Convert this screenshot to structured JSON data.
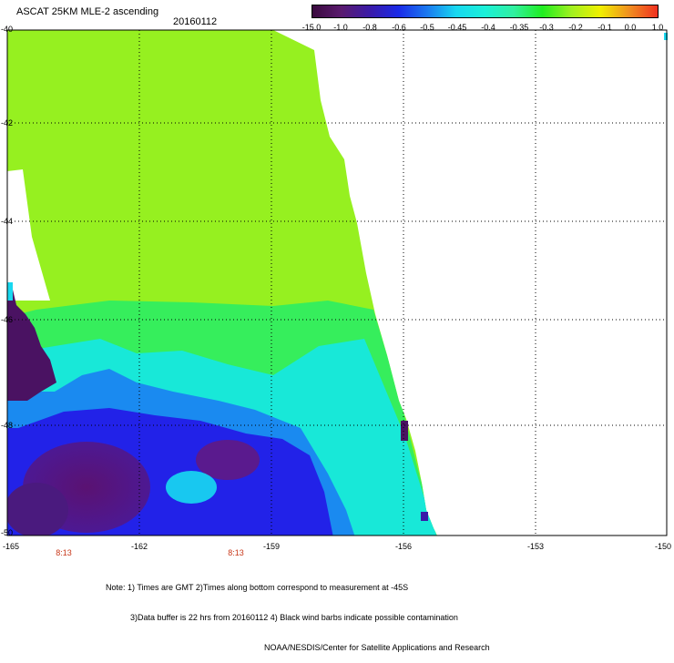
{
  "title": "ASCAT 25KM MLE-2 ascending",
  "date": "20160112",
  "colorbar": {
    "labels": [
      "-15.0",
      "-1.0",
      "-0.8",
      "-0.6",
      "-0.5",
      "-0.45",
      "-0.4",
      "-0.35",
      "-0.3",
      "-0.2",
      "-0.1",
      "0.0",
      "1.0"
    ],
    "colors": [
      "#3a0a3e",
      "#5a1a6e",
      "#3a1aa8",
      "#1a2ae8",
      "#1a7af0",
      "#18d8f0",
      "#1af0d8",
      "#30f0a0",
      "#20ee20",
      "#a0f020",
      "#f0f000",
      "#f09020",
      "#f03020"
    ]
  },
  "map": {
    "lat_labels": [
      "-40",
      "-42",
      "-44",
      "-46",
      "-48",
      "-50"
    ],
    "lon_labels": [
      "-165",
      "-162",
      "-159",
      "-156",
      "-153",
      "-150"
    ],
    "time_labels": [
      "8:13",
      "8:13"
    ]
  },
  "notes": [
    "Note: 1) Times are GMT 2)Times along bottom correspond to measurement at -45S",
    "3)Data buffer is 22 hrs from 20160112 4) Black wind barbs indicate possible contamination",
    "NOAA/NESDIS/Center for Satellite Applications and Research"
  ]
}
